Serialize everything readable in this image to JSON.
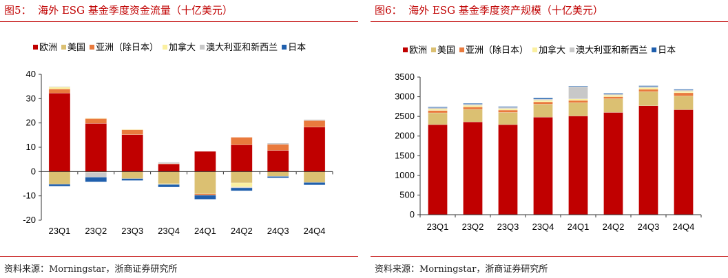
{
  "colors": {
    "欧洲": "#C00000",
    "美国": "#DBC072",
    "亚洲（除日本）": "#E97A3D",
    "加拿大": "#FBF0A0",
    "澳大利亚和新西兰": "#C8C8C8",
    "日本": "#1F5FAD",
    "title": "#C00000"
  },
  "chart_data": [
    {
      "type": "bar",
      "stacked": true,
      "title": "图5：  海外 ESG 基金季度资金流量（十亿美元）",
      "source": "资料来源：Morningstar，浙商证券研究所",
      "categories": [
        "23Q1",
        "23Q2",
        "23Q3",
        "23Q4",
        "24Q1",
        "24Q2",
        "24Q3",
        "24Q4"
      ],
      "ylim": [
        -20,
        40
      ],
      "yticks": [
        -20,
        -10,
        0,
        10,
        20,
        30,
        40
      ],
      "legend": "top",
      "grid": false,
      "series": [
        {
          "name": "欧洲",
          "values": [
            32.3,
            19.8,
            15.2,
            3.2,
            8.3,
            11.0,
            8.7,
            18.3
          ]
        },
        {
          "name": "美国",
          "values": [
            -5.2,
            -0.3,
            -2.9,
            -5.0,
            -9.2,
            -4.7,
            -2.0,
            -4.5
          ]
        },
        {
          "name": "亚洲（除日本）",
          "values": [
            1.7,
            2.0,
            2.0,
            0.1,
            -0.5,
            3.1,
            2.5,
            2.7
          ]
        },
        {
          "name": "加拿大",
          "values": [
            0.8,
            0.2,
            0.2,
            -0.3,
            0,
            -1.6,
            0,
            0
          ]
        },
        {
          "name": "澳大利亚和新西兰",
          "values": [
            0.2,
            -2.0,
            0,
            0.5,
            0,
            -0.4,
            0.5,
            0.4
          ]
        },
        {
          "name": "日本",
          "values": [
            -0.8,
            -1.9,
            -0.8,
            -1.1,
            -1.7,
            -1.2,
            -0.6,
            -1.0
          ]
        }
      ]
    },
    {
      "type": "bar",
      "stacked": true,
      "title": "图6：  海外 ESG 基金季度资产规模（十亿美元）",
      "source": "资料来源：Morningstar，浙商证券研究所",
      "categories": [
        "23Q1",
        "23Q2",
        "23Q3",
        "23Q4",
        "24Q1",
        "24Q2",
        "24Q3",
        "24Q4"
      ],
      "ylim": [
        0,
        3500
      ],
      "yticks": [
        0,
        500,
        1000,
        1500,
        2000,
        2500,
        3000,
        3500
      ],
      "legend": "top",
      "grid": false,
      "series": [
        {
          "name": "欧洲",
          "values": [
            2290,
            2360,
            2290,
            2480,
            2510,
            2600,
            2770,
            2670
          ]
        },
        {
          "name": "美国",
          "values": [
            300,
            320,
            310,
            330,
            340,
            350,
            360,
            350
          ]
        },
        {
          "name": "亚洲（除日本）",
          "values": [
            60,
            60,
            60,
            60,
            55,
            50,
            60,
            80
          ]
        },
        {
          "name": "加拿大",
          "values": [
            40,
            40,
            40,
            40,
            40,
            40,
            40,
            40
          ]
        },
        {
          "name": "澳大利亚和新西兰",
          "values": [
            30,
            30,
            30,
            30,
            310,
            30,
            30,
            30
          ]
        },
        {
          "name": "日本",
          "values": [
            20,
            20,
            20,
            30,
            15,
            20,
            20,
            20
          ]
        }
      ]
    }
  ]
}
